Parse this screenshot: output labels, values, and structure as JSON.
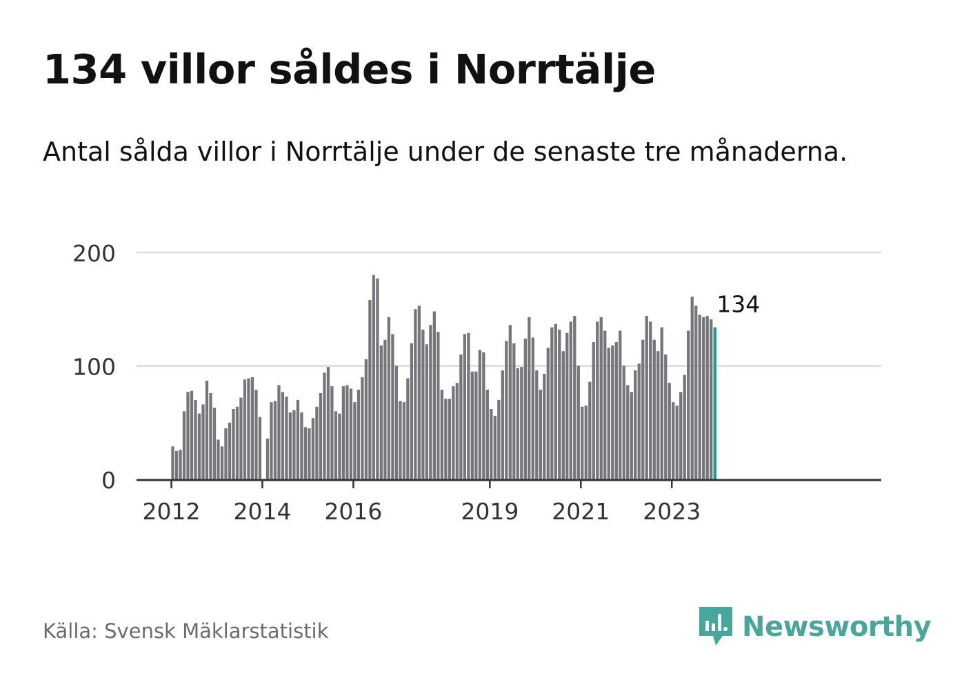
{
  "title": "134 villor såldes i Norrtälje",
  "subtitle": "Antal sålda villor i Norrtälje under de senaste tre månaderna.",
  "source": "Källa: Svensk Mäklarstatistik",
  "brand": {
    "name": "Newsworthy",
    "icon": "newsworthy-logo-icon",
    "color": "#4aa59b"
  },
  "colors": {
    "bar": "#76757a",
    "highlight": "#1a9a93",
    "grid": "#dcdcdc",
    "axis": "#333333"
  },
  "chart_data": {
    "type": "bar",
    "title": "134 villor såldes i Norrtälje",
    "xlabel": "",
    "ylabel": "",
    "ylim": [
      0,
      200
    ],
    "yticks": [
      {
        "value": 0,
        "label": "0"
      },
      {
        "value": 100,
        "label": "100"
      },
      {
        "value": 200,
        "label": "200"
      }
    ],
    "xticks": [
      {
        "index": 0,
        "label": "2012"
      },
      {
        "index": 24,
        "label": "2014"
      },
      {
        "index": 48,
        "label": "2016"
      },
      {
        "index": 84,
        "label": "2019"
      },
      {
        "index": 108,
        "label": "2021"
      },
      {
        "index": 132,
        "label": "2023"
      }
    ],
    "start": "2012-01",
    "highlight_label": "134",
    "series": [
      {
        "name": "Antal sålda villor",
        "values": [
          29,
          25,
          26,
          60,
          77,
          78,
          70,
          58,
          66,
          87,
          76,
          63,
          35,
          29,
          45,
          50,
          62,
          64,
          72,
          88,
          89,
          90,
          79,
          55,
          0,
          36,
          68,
          69,
          83,
          77,
          73,
          59,
          61,
          70,
          59,
          46,
          45,
          54,
          64,
          76,
          94,
          99,
          82,
          60,
          58,
          82,
          83,
          80,
          68,
          79,
          90,
          106,
          158,
          180,
          177,
          118,
          123,
          143,
          128,
          100,
          69,
          68,
          89,
          120,
          150,
          153,
          132,
          119,
          136,
          148,
          130,
          79,
          71,
          71,
          82,
          85,
          110,
          128,
          129,
          95,
          95,
          114,
          112,
          79,
          62,
          56,
          70,
          96,
          122,
          136,
          120,
          98,
          99,
          124,
          143,
          125,
          96,
          79,
          93,
          116,
          134,
          137,
          132,
          113,
          129,
          139,
          144,
          100,
          64,
          65,
          86,
          121,
          139,
          143,
          131,
          116,
          118,
          121,
          131,
          100,
          83,
          77,
          96,
          102,
          123,
          144,
          139,
          123,
          113,
          134,
          110,
          85,
          68,
          65,
          77,
          92,
          131,
          161,
          153,
          145,
          143,
          144,
          141,
          134
        ]
      }
    ]
  }
}
